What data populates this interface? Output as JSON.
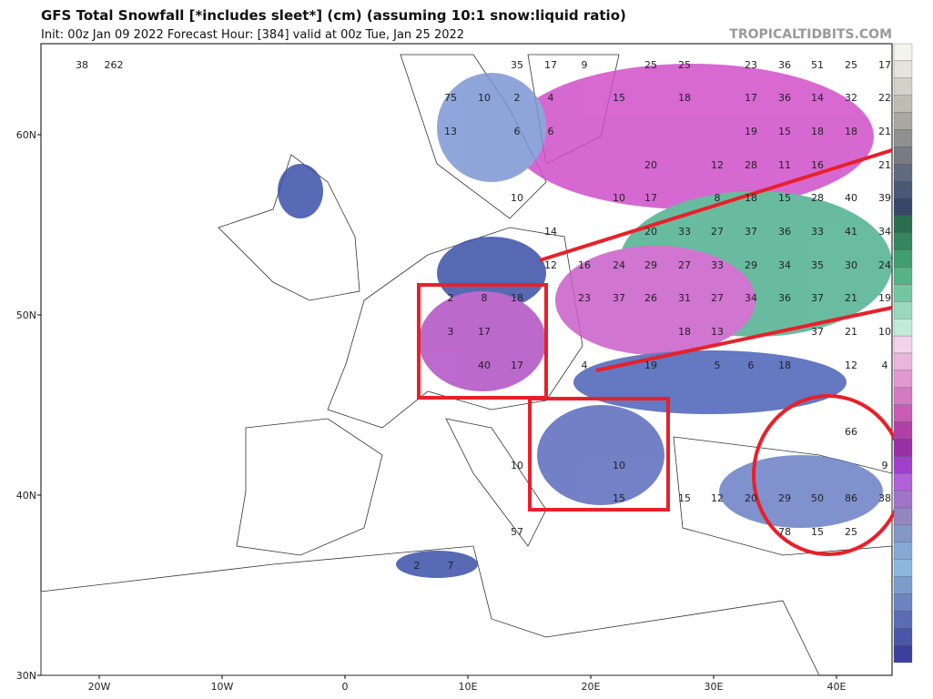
{
  "header": {
    "title": "GFS Total Snowfall [*includes sleet*] (cm) (assuming 10:1 snow:liquid ratio)",
    "subtitle": "Init: 00z Jan 09 2022   Forecast Hour: [384]   valid at 00z Tue, Jan 25 2022",
    "brand": "TROPICALTIDBITS.COM"
  },
  "map": {
    "lat_labels": [
      "60N",
      "50N",
      "40N",
      "30N"
    ],
    "lon_labels": [
      "20W",
      "10W",
      "0",
      "10E",
      "20E",
      "30E",
      "40E"
    ],
    "snow_labels": [
      25,
      25,
      23,
      36,
      51,
      25,
      17,
      15,
      18,
      17,
      36,
      14,
      32,
      22,
      19,
      15,
      18,
      18,
      21,
      20,
      12,
      28,
      11,
      16,
      21,
      10,
      17,
      8,
      18,
      15,
      28,
      40,
      39,
      20,
      33,
      27,
      37,
      36,
      33,
      41,
      34,
      12,
      16,
      24,
      29,
      27,
      33,
      29,
      34,
      35,
      30,
      24,
      23,
      37,
      26,
      31,
      27,
      34,
      36,
      37,
      21,
      19,
      18,
      13,
      37,
      21,
      10,
      4,
      19,
      5,
      6,
      18,
      12,
      4,
      2,
      8,
      18,
      3,
      17,
      40,
      17,
      66,
      9,
      20,
      29,
      50,
      86,
      38,
      78,
      15,
      25,
      15,
      12,
      15,
      10,
      10,
      2,
      7,
      57,
      75,
      10,
      2,
      4,
      13,
      6,
      6,
      10,
      14,
      17,
      9,
      35,
      38,
      262
    ]
  }
}
